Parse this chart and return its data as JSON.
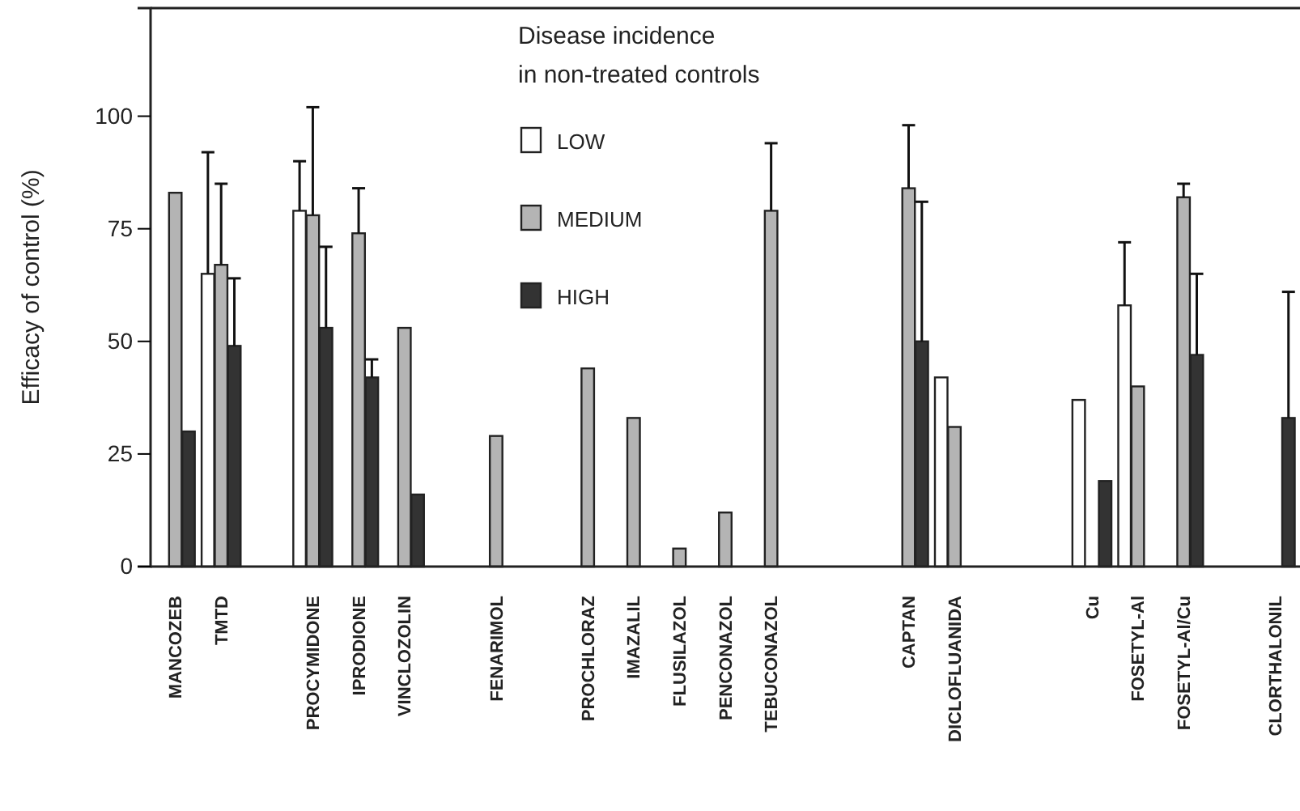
{
  "chart_data": {
    "type": "bar",
    "ylabel": "Efficacy of control  (%)",
    "legend_title": "Disease incidence\nin non-treated controls",
    "legend": "top",
    "grid": false,
    "categories": [
      "MANCOZEB",
      "TMTD",
      null,
      "PROCYMIDONE",
      "IPRODIONE",
      "VINCLOZOLIN",
      null,
      "FENARIMOL",
      null,
      "PROCHLORAZ",
      "IMAZALIL",
      "FLUSILAZOL",
      "PENCONAZOL",
      "TEBUCONAZOL",
      null,
      null,
      "CAPTAN",
      "DICLOFLUANIDA",
      null,
      null,
      "Cu",
      "FOSETYL-Al",
      "FOSETYL-Al/Cu",
      null,
      "CLORTHALONIL"
    ],
    "ylim": [
      0,
      124
    ],
    "yticks": [
      0,
      25,
      50,
      75,
      100
    ],
    "series": [
      {
        "name": "LOW",
        "color": "#ffffff",
        "values": [
          null,
          65,
          null,
          79,
          null,
          null,
          null,
          null,
          null,
          null,
          null,
          null,
          null,
          null,
          null,
          null,
          null,
          42,
          null,
          null,
          37,
          58,
          null,
          null,
          null
        ],
        "errors": [
          null,
          [
            65,
            92
          ],
          null,
          [
            79,
            90
          ],
          null,
          null,
          null,
          null,
          null,
          null,
          null,
          null,
          null,
          null,
          null,
          null,
          null,
          null,
          null,
          null,
          null,
          [
            58,
            72
          ],
          null,
          null,
          null
        ]
      },
      {
        "name": "MEDIUM",
        "color": "#b4b4b4",
        "values": [
          83,
          67,
          null,
          78,
          74,
          53,
          null,
          29,
          null,
          44,
          33,
          4,
          12,
          79,
          null,
          null,
          84,
          31,
          null,
          null,
          null,
          40,
          82,
          null,
          null
        ],
        "errors": [
          null,
          [
            67,
            85
          ],
          null,
          [
            78,
            102
          ],
          [
            74,
            84
          ],
          null,
          null,
          null,
          null,
          null,
          null,
          null,
          null,
          [
            79,
            94
          ],
          null,
          null,
          [
            84,
            98
          ],
          null,
          null,
          null,
          null,
          null,
          [
            82,
            85
          ],
          null,
          null
        ]
      },
      {
        "name": "HIGH",
        "color": "#333333",
        "values": [
          30,
          49,
          null,
          53,
          42,
          16,
          null,
          null,
          null,
          null,
          null,
          null,
          null,
          null,
          null,
          null,
          50,
          null,
          null,
          null,
          19,
          null,
          47,
          null,
          33
        ],
        "errors": [
          null,
          [
            49,
            64
          ],
          null,
          [
            53,
            71
          ],
          [
            42,
            46
          ],
          null,
          null,
          null,
          null,
          null,
          null,
          null,
          null,
          null,
          null,
          null,
          [
            50,
            81
          ],
          null,
          null,
          null,
          null,
          null,
          [
            47,
            65
          ],
          null,
          [
            33,
            61
          ]
        ]
      }
    ]
  }
}
